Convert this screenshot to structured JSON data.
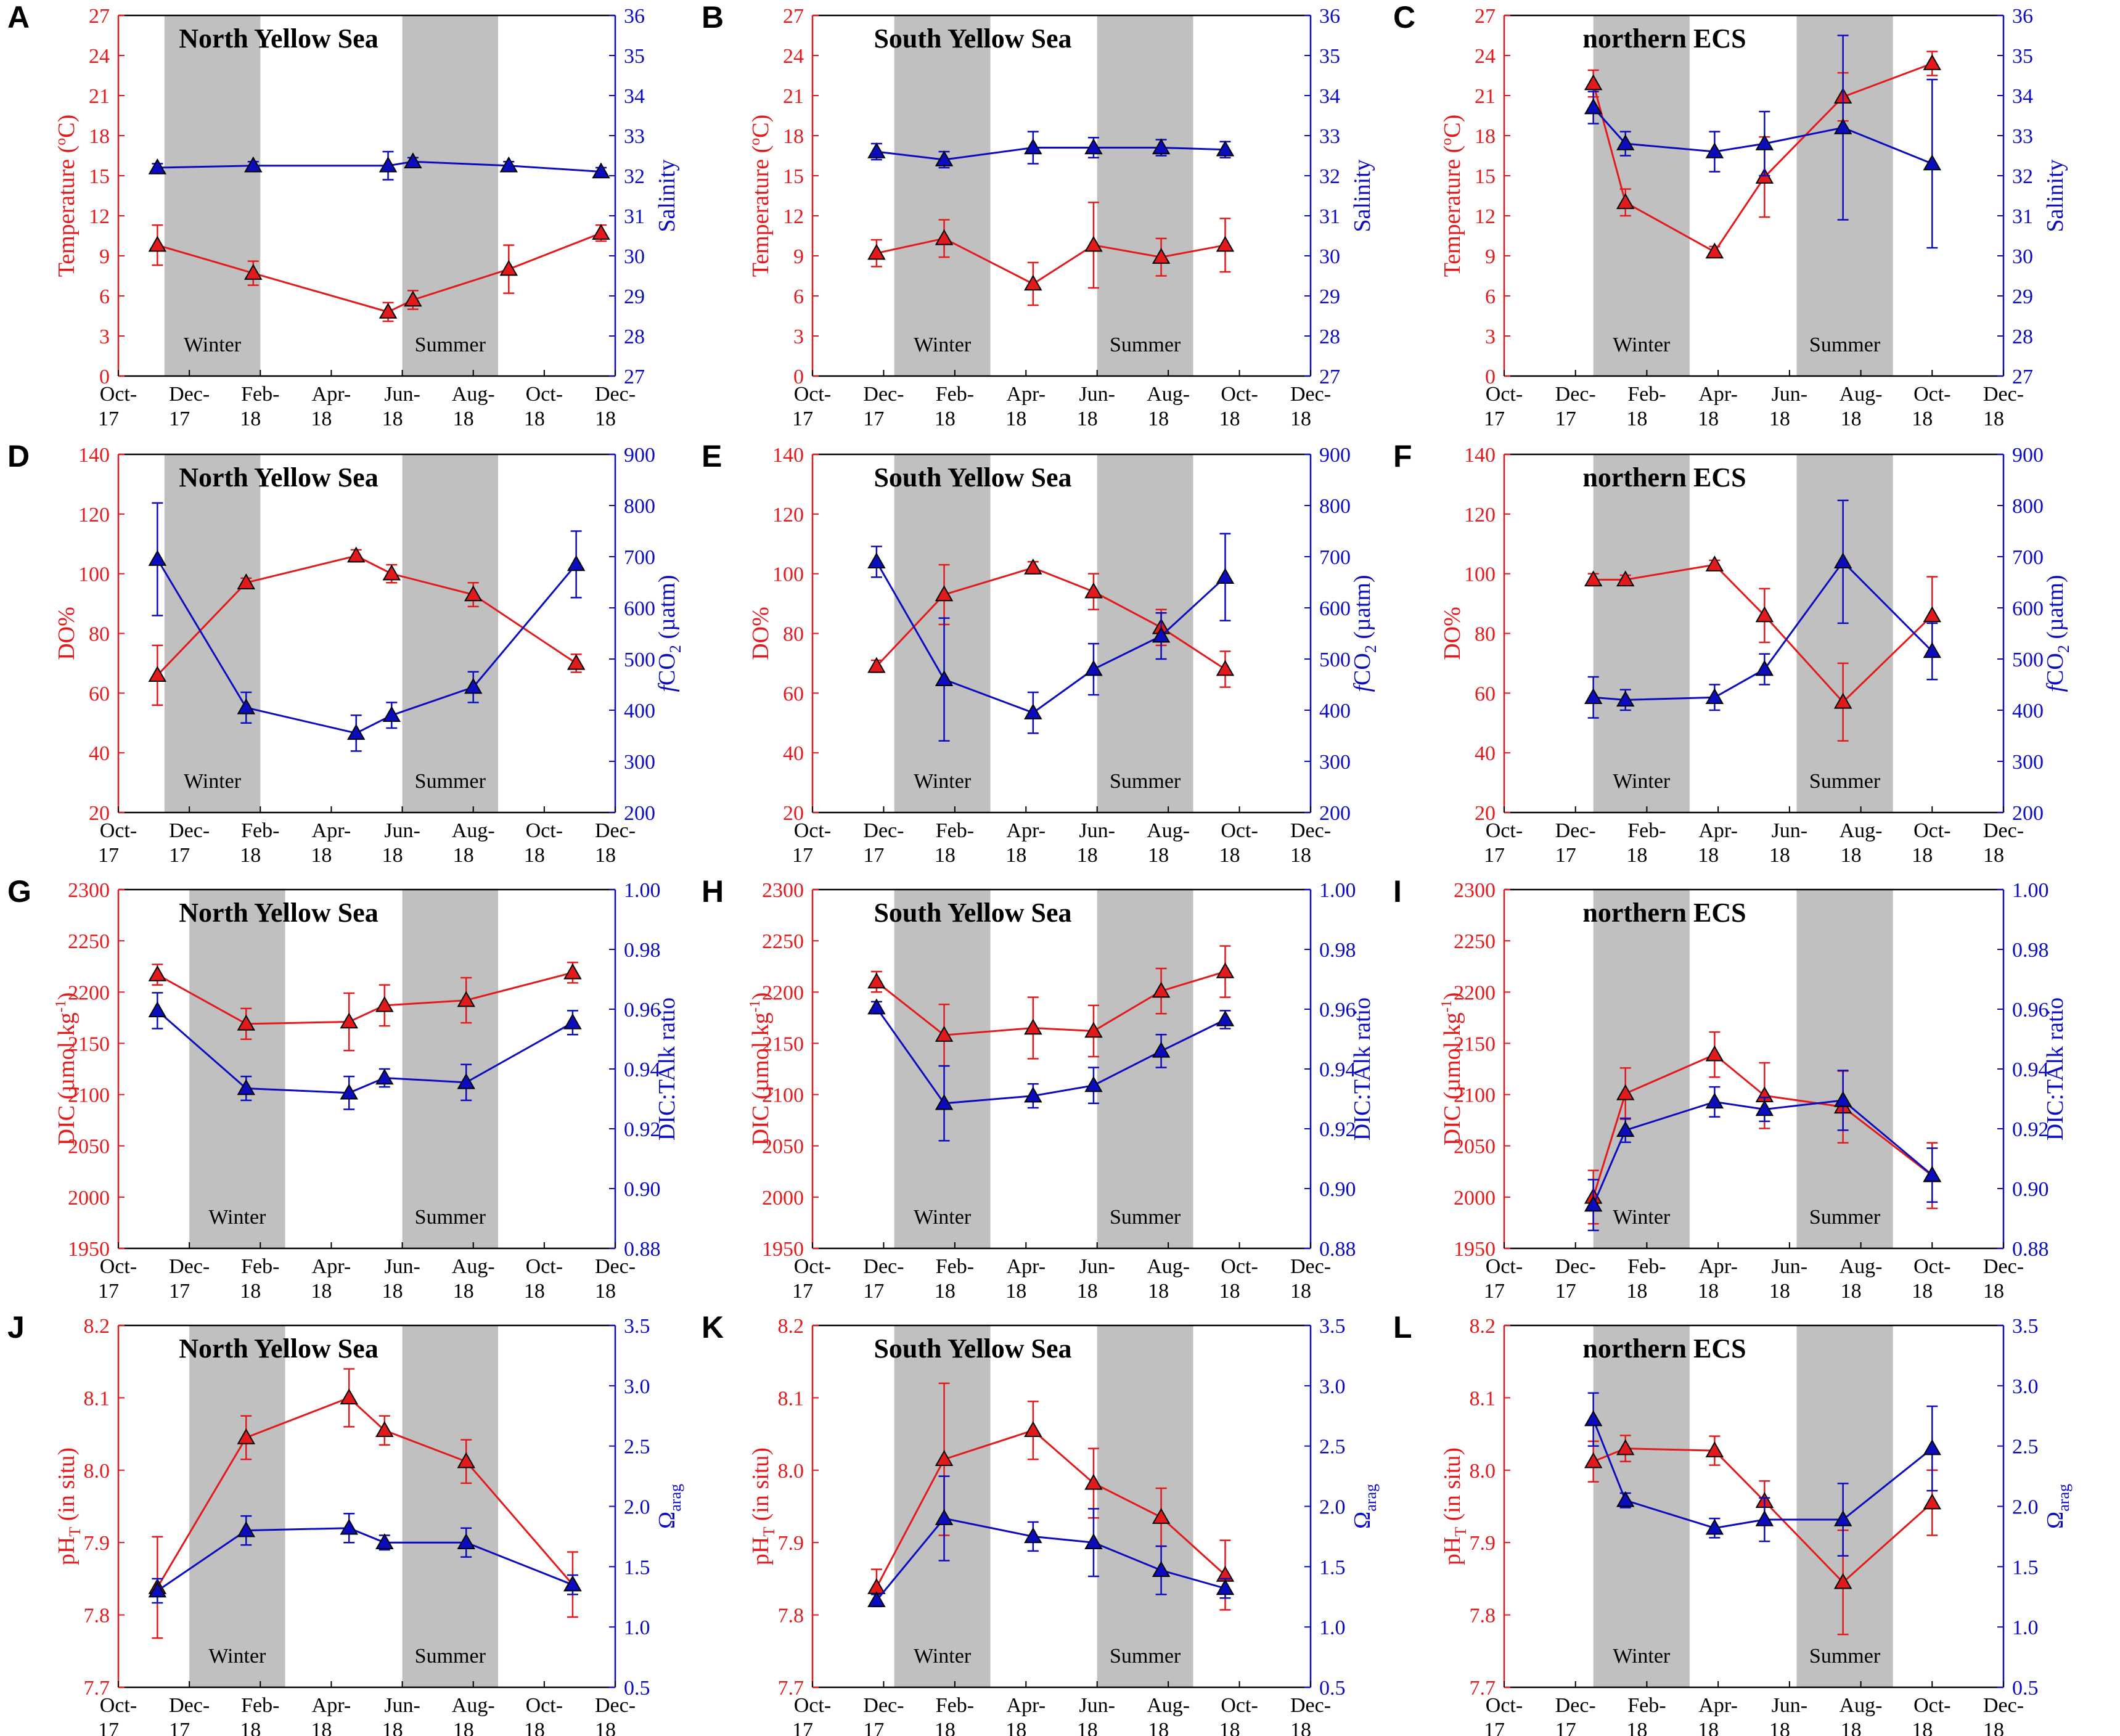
{
  "figure": {
    "colors": {
      "red": "#e31a1c",
      "blue": "#0c0cbf",
      "shade": "#c0c0c0",
      "axis": "#000000"
    },
    "x_ticks": [
      {
        "top": "Oct-",
        "bottom": "17"
      },
      {
        "top": "Dec-",
        "bottom": "17"
      },
      {
        "top": "Feb-",
        "bottom": "18"
      },
      {
        "top": "Apr-",
        "bottom": "18"
      },
      {
        "top": "Jun-",
        "bottom": "18"
      },
      {
        "top": "Aug-",
        "bottom": "18"
      },
      {
        "top": "Oct-",
        "bottom": "18"
      },
      {
        "top": "Dec-",
        "bottom": "18"
      }
    ],
    "seasons": {
      "winter": "Winter",
      "summer": "Summer"
    }
  },
  "chart_data": [
    {
      "panel": "A",
      "type": "line",
      "title": "North Yellow Sea",
      "xrange": [
        0,
        14
      ],
      "winter": [
        1.3,
        4.0
      ],
      "summer": [
        8.0,
        10.7
      ],
      "left": {
        "label_html": "Temperature (°C)",
        "label": "Temperature (oC)",
        "range": [
          0,
          27
        ],
        "ticks": [
          "0",
          "3",
          "6",
          "9",
          "12",
          "15",
          "18",
          "21",
          "24",
          "27"
        ],
        "x": [
          1.1,
          3.8,
          7.6,
          8.3,
          11.0,
          13.6
        ],
        "y": [
          9.8,
          7.7,
          4.8,
          5.7,
          8.0,
          10.7
        ],
        "err": [
          1.5,
          0.9,
          0.7,
          0.7,
          1.8,
          0.6
        ]
      },
      "right": {
        "label": "Salinity",
        "range": [
          27,
          36
        ],
        "ticks": [
          "27",
          "28",
          "29",
          "30",
          "31",
          "32",
          "33",
          "34",
          "35",
          "36"
        ],
        "x": [
          1.1,
          3.8,
          7.6,
          8.3,
          11.0,
          13.6
        ],
        "y": [
          32.2,
          32.25,
          32.25,
          32.35,
          32.25,
          32.1
        ],
        "err": [
          0.1,
          0.1,
          0.35,
          0.1,
          0.1,
          0.1
        ]
      }
    },
    {
      "panel": "B",
      "type": "line",
      "title": "South Yellow Sea",
      "xrange": [
        0,
        14
      ],
      "winter": [
        2.3,
        5.0
      ],
      "summer": [
        8.0,
        10.7
      ],
      "left": {
        "label": "Temperature (oC)",
        "range": [
          0,
          27
        ],
        "ticks": [
          "0",
          "3",
          "6",
          "9",
          "12",
          "15",
          "18",
          "21",
          "24",
          "27"
        ],
        "x": [
          1.8,
          3.7,
          6.2,
          7.9,
          9.8,
          11.6
        ],
        "y": [
          9.2,
          10.3,
          6.9,
          9.8,
          8.9,
          9.8
        ],
        "err": [
          1.0,
          1.4,
          1.6,
          3.2,
          1.4,
          2.0
        ]
      },
      "right": {
        "label": "Salinity",
        "range": [
          27,
          36
        ],
        "ticks": [
          "27",
          "28",
          "29",
          "30",
          "31",
          "32",
          "33",
          "34",
          "35",
          "36"
        ],
        "x": [
          1.8,
          3.7,
          6.2,
          7.9,
          9.8,
          11.6
        ],
        "y": [
          32.6,
          32.4,
          32.7,
          32.7,
          32.7,
          32.65
        ],
        "err": [
          0.2,
          0.2,
          0.4,
          0.25,
          0.2,
          0.2
        ]
      }
    },
    {
      "panel": "C",
      "type": "line",
      "title": "northern ECS",
      "xrange": [
        0,
        14
      ],
      "winter": [
        2.5,
        5.2
      ],
      "summer": [
        8.2,
        10.9
      ],
      "left": {
        "label": "Temperature (oC)",
        "range": [
          0,
          27
        ],
        "ticks": [
          "0",
          "3",
          "6",
          "9",
          "12",
          "15",
          "18",
          "21",
          "24",
          "27"
        ],
        "x": [
          2.5,
          3.4,
          5.9,
          7.3,
          9.5,
          12.0
        ],
        "y": [
          21.9,
          13.0,
          9.3,
          14.9,
          20.9,
          23.4
        ],
        "err": [
          1.0,
          1.0,
          0.4,
          3.0,
          1.8,
          0.9
        ]
      },
      "right": {
        "label": "Salinity",
        "range": [
          27,
          36
        ],
        "ticks": [
          "27",
          "28",
          "29",
          "30",
          "31",
          "32",
          "33",
          "34",
          "35",
          "36"
        ],
        "x": [
          2.5,
          3.4,
          5.9,
          7.3,
          9.5,
          12.0
        ],
        "y": [
          33.7,
          32.8,
          32.6,
          32.8,
          33.2,
          32.3
        ],
        "err": [
          0.4,
          0.3,
          0.5,
          0.8,
          2.3,
          2.1
        ]
      }
    },
    {
      "panel": "D",
      "type": "line",
      "title": "North Yellow Sea",
      "xrange": [
        0,
        14
      ],
      "winter": [
        1.3,
        4.0
      ],
      "summer": [
        8.0,
        10.7
      ],
      "left": {
        "label": "DO%",
        "range": [
          20,
          140
        ],
        "ticks": [
          "20",
          "40",
          "60",
          "80",
          "100",
          "120",
          "140"
        ],
        "x": [
          1.1,
          3.6,
          6.7,
          7.7,
          10.0,
          12.9
        ],
        "y": [
          66,
          97,
          106,
          100,
          93,
          70
        ],
        "err": [
          10,
          1.5,
          2,
          3,
          4,
          3
        ]
      },
      "right": {
        "label_html": "fCO2 (µatm)",
        "label": "fCO2 (µatm)",
        "range": [
          200,
          900
        ],
        "ticks": [
          "200",
          "300",
          "400",
          "500",
          "600",
          "700",
          "800",
          "900"
        ],
        "x": [
          1.1,
          3.6,
          6.7,
          7.7,
          10.0,
          12.9
        ],
        "y": [
          695,
          405,
          355,
          390,
          445,
          685
        ],
        "err": [
          110,
          30,
          35,
          25,
          30,
          65
        ]
      }
    },
    {
      "panel": "E",
      "type": "line",
      "title": "South Yellow Sea",
      "xrange": [
        0,
        14
      ],
      "winter": [
        2.3,
        5.0
      ],
      "summer": [
        8.0,
        10.7
      ],
      "left": {
        "label": "DO%",
        "range": [
          20,
          140
        ],
        "ticks": [
          "20",
          "40",
          "60",
          "80",
          "100",
          "120",
          "140"
        ],
        "x": [
          1.8,
          3.7,
          6.2,
          7.9,
          9.8,
          11.6
        ],
        "y": [
          69,
          93,
          102,
          94,
          82,
          68
        ],
        "err": [
          2,
          10,
          2,
          6,
          6,
          6
        ]
      },
      "right": {
        "label": "fCO2 (µatm)",
        "range": [
          200,
          900
        ],
        "ticks": [
          "200",
          "300",
          "400",
          "500",
          "600",
          "700",
          "800",
          "900"
        ],
        "x": [
          1.8,
          3.7,
          6.2,
          7.9,
          9.8,
          11.6
        ],
        "y": [
          690,
          460,
          395,
          480,
          545,
          660
        ],
        "err": [
          30,
          120,
          40,
          50,
          45,
          85
        ]
      }
    },
    {
      "panel": "F",
      "type": "line",
      "title": "northern ECS",
      "xrange": [
        0,
        14
      ],
      "winter": [
        2.5,
        5.2
      ],
      "summer": [
        8.2,
        10.9
      ],
      "left": {
        "label": "DO%",
        "range": [
          20,
          140
        ],
        "ticks": [
          "20",
          "40",
          "60",
          "80",
          "100",
          "120",
          "140"
        ],
        "x": [
          2.5,
          3.4,
          5.9,
          7.3,
          9.5,
          12.0
        ],
        "y": [
          98,
          98,
          103,
          86,
          57,
          86
        ],
        "err": [
          2,
          1.5,
          1.5,
          9,
          13,
          13
        ]
      },
      "right": {
        "label": "fCO2 (µatm)",
        "range": [
          200,
          900
        ],
        "ticks": [
          "200",
          "300",
          "400",
          "500",
          "600",
          "700",
          "800",
          "900"
        ],
        "x": [
          2.5,
          3.4,
          5.9,
          7.3,
          9.5,
          12.0
        ],
        "y": [
          425,
          420,
          425,
          480,
          690,
          515
        ],
        "err": [
          40,
          20,
          25,
          30,
          120,
          55
        ]
      }
    },
    {
      "panel": "G",
      "type": "line",
      "title": "North Yellow Sea",
      "xrange": [
        0,
        14
      ],
      "winter": [
        2.0,
        4.7
      ],
      "summer": [
        8.0,
        10.7
      ],
      "left": {
        "label": "DIC (µmol kg-1)",
        "range": [
          1950,
          2300
        ],
        "ticks": [
          "1950",
          "2000",
          "2050",
          "2100",
          "2150",
          "2200",
          "2250",
          "2300"
        ],
        "x": [
          1.1,
          3.6,
          6.5,
          7.5,
          9.8,
          12.8
        ],
        "y": [
          2217,
          2169,
          2171,
          2187,
          2192,
          2219
        ],
        "err": [
          10,
          15,
          28,
          20,
          22,
          10
        ]
      },
      "right": {
        "label": "DIC:TAlk ratio",
        "range": [
          0.88,
          1.0
        ],
        "ticks": [
          "0.88",
          "0.90",
          "0.92",
          "0.94",
          "0.96",
          "0.98",
          "1.00"
        ],
        "x": [
          1.1,
          3.6,
          6.5,
          7.5,
          9.8,
          12.8
        ],
        "y": [
          0.9595,
          0.9335,
          0.932,
          0.937,
          0.9355,
          0.9555
        ],
        "err": [
          0.006,
          0.004,
          0.0055,
          0.003,
          0.006,
          0.004
        ]
      }
    },
    {
      "panel": "H",
      "type": "line",
      "title": "South Yellow Sea",
      "xrange": [
        0,
        14
      ],
      "winter": [
        2.3,
        5.0
      ],
      "summer": [
        8.0,
        10.7
      ],
      "left": {
        "label": "DIC (µmol kg-1)",
        "range": [
          1950,
          2300
        ],
        "ticks": [
          "1950",
          "2000",
          "2050",
          "2100",
          "2150",
          "2200",
          "2250",
          "2300"
        ],
        "x": [
          1.8,
          3.7,
          6.2,
          7.9,
          9.8,
          11.6
        ],
        "y": [
          2210,
          2158,
          2165,
          2162,
          2201,
          2220
        ],
        "err": [
          10,
          30,
          30,
          25,
          22,
          25
        ]
      },
      "right": {
        "label": "DIC:TAlk ratio",
        "range": [
          0.88,
          1.0
        ],
        "ticks": [
          "0.88",
          "0.90",
          "0.92",
          "0.94",
          "0.96",
          "0.98",
          "1.00"
        ],
        "x": [
          1.8,
          3.7,
          6.2,
          7.9,
          9.8,
          11.6
        ],
        "y": [
          0.9605,
          0.9285,
          0.931,
          0.9345,
          0.946,
          0.9565
        ],
        "err": [
          0.002,
          0.0125,
          0.004,
          0.006,
          0.0055,
          0.003
        ]
      }
    },
    {
      "panel": "I",
      "type": "line",
      "title": "northern ECS",
      "xrange": [
        0,
        14
      ],
      "winter": [
        2.5,
        5.2
      ],
      "summer": [
        8.2,
        10.9
      ],
      "left": {
        "label": "DIC (µmol kg-1)",
        "range": [
          1950,
          2300
        ],
        "ticks": [
          "1950",
          "2000",
          "2050",
          "2100",
          "2150",
          "2200",
          "2250",
          "2300"
        ],
        "x": [
          2.5,
          3.4,
          5.9,
          7.3,
          9.5,
          12.0
        ],
        "y": [
          2000,
          2101,
          2139,
          2099,
          2088,
          2021
        ],
        "err": [
          26,
          25,
          22,
          32,
          35,
          32
        ]
      },
      "right": {
        "label": "DIC:TAlk ratio",
        "range": [
          0.88,
          1.0
        ],
        "ticks": [
          "0.88",
          "0.90",
          "0.92",
          "0.94",
          "0.96",
          "0.98",
          "1.00"
        ],
        "x": [
          2.5,
          3.4,
          5.9,
          7.3,
          9.5,
          12.0
        ],
        "y": [
          0.8945,
          0.9195,
          0.929,
          0.9265,
          0.9295,
          0.9045
        ],
        "err": [
          0.0085,
          0.004,
          0.005,
          0.004,
          0.01,
          0.009
        ]
      }
    },
    {
      "panel": "J",
      "type": "line",
      "title": "North Yellow Sea",
      "xrange": [
        0,
        14
      ],
      "winter": [
        2.0,
        4.7
      ],
      "summer": [
        8.0,
        10.7
      ],
      "left": {
        "label": "pHT (in situ)",
        "range": [
          7.7,
          8.2
        ],
        "ticks": [
          "7.7",
          "7.8",
          "7.9",
          "8.0",
          "8.1",
          "8.2"
        ],
        "x": [
          1.1,
          3.6,
          6.5,
          7.5,
          9.8,
          12.8
        ],
        "y": [
          7.838,
          8.045,
          8.1,
          8.055,
          8.012,
          7.842
        ],
        "err": [
          0.07,
          0.03,
          0.04,
          0.02,
          0.03,
          0.045
        ]
      },
      "right": {
        "label": "Ωarag",
        "range": [
          0.5,
          3.5
        ],
        "ticks": [
          "0.5",
          "1.0",
          "1.5",
          "2.0",
          "2.5",
          "3.0",
          "3.5"
        ],
        "x": [
          1.1,
          3.6,
          6.5,
          7.5,
          9.8,
          12.8
        ],
        "y": [
          1.3,
          1.8,
          1.82,
          1.7,
          1.7,
          1.35
        ],
        "err": [
          0.1,
          0.12,
          0.12,
          0.06,
          0.12,
          0.08
        ]
      }
    },
    {
      "panel": "K",
      "type": "line",
      "title": "South Yellow Sea",
      "xrange": [
        0,
        14
      ],
      "winter": [
        2.3,
        5.0
      ],
      "summer": [
        8.0,
        10.7
      ],
      "left": {
        "label": "pHT (in situ)",
        "range": [
          7.7,
          8.2
        ],
        "ticks": [
          "7.7",
          "7.8",
          "7.9",
          "8.0",
          "8.1",
          "8.2"
        ],
        "x": [
          1.8,
          3.7,
          6.2,
          7.9,
          9.8,
          11.6
        ],
        "y": [
          7.838,
          8.015,
          8.055,
          7.982,
          7.935,
          7.855
        ],
        "err": [
          0.025,
          0.105,
          0.04,
          0.048,
          0.04,
          0.048
        ]
      },
      "right": {
        "label": "Ωarag",
        "range": [
          0.5,
          3.5
        ],
        "ticks": [
          "0.5",
          "1.0",
          "1.5",
          "2.0",
          "2.5",
          "3.0",
          "3.5"
        ],
        "x": [
          1.8,
          3.7,
          6.2,
          7.9,
          9.8,
          11.6
        ],
        "y": [
          1.22,
          1.9,
          1.75,
          1.7,
          1.47,
          1.32
        ],
        "err": [
          0.05,
          0.35,
          0.12,
          0.28,
          0.2,
          0.08
        ]
      }
    },
    {
      "panel": "L",
      "type": "line",
      "title": "northern ECS",
      "xrange": [
        0,
        14
      ],
      "winter": [
        2.5,
        5.2
      ],
      "summer": [
        8.2,
        10.9
      ],
      "left": {
        "label": "pHT (in situ)",
        "range": [
          7.7,
          8.2
        ],
        "ticks": [
          "7.7",
          "7.8",
          "7.9",
          "8.0",
          "8.1",
          "8.2"
        ],
        "x": [
          2.5,
          3.4,
          5.9,
          7.3,
          9.5,
          12.0
        ],
        "y": [
          8.012,
          8.03,
          8.027,
          7.957,
          7.845,
          7.955
        ],
        "err": [
          0.028,
          0.018,
          0.02,
          0.028,
          0.072,
          0.045
        ]
      },
      "right": {
        "label": "Ωarag",
        "range": [
          0.5,
          3.5
        ],
        "ticks": [
          "0.5",
          "1.0",
          "1.5",
          "2.0",
          "2.5",
          "3.0",
          "3.5"
        ],
        "x": [
          2.5,
          3.4,
          5.9,
          7.3,
          9.5,
          12.0
        ],
        "y": [
          2.72,
          2.05,
          1.82,
          1.89,
          1.89,
          2.48
        ],
        "err": [
          0.22,
          0.06,
          0.08,
          0.18,
          0.3,
          0.35
        ]
      }
    }
  ]
}
